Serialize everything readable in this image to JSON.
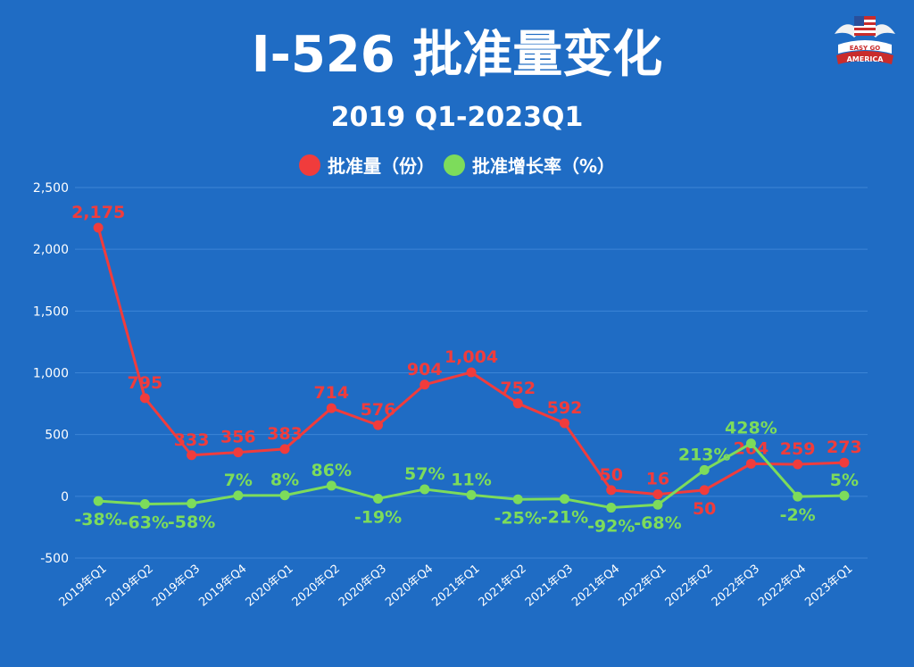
{
  "header": {
    "title": "I-526 批准量变化",
    "subtitle": "2019 Q1-2023Q1"
  },
  "logo": {
    "text_top": "EASY GO",
    "text_bottom": "AMERICA",
    "icon": "eagle-flag-logo"
  },
  "colors": {
    "background": "#1f6cc4",
    "approvals": "#f03c3c",
    "growth": "#7ddc5b",
    "text": "#ffffff"
  },
  "chart_data": {
    "type": "line",
    "title": "I-526 批准量变化",
    "subtitle": "2019 Q1-2023Q1",
    "legend_position": "top-center",
    "grid": true,
    "ylim": [
      -500,
      2500
    ],
    "yticks": [
      2500,
      2000,
      1500,
      1000,
      500,
      0,
      -500
    ],
    "ytick_labels": [
      "2,500",
      "2,000",
      "1,500",
      "1,000",
      "500",
      "0",
      "-500"
    ],
    "categories": [
      "2019年Q1",
      "2019年Q2",
      "2019年Q3",
      "2019年Q4",
      "2020年Q1",
      "2020年Q2",
      "2020年Q3",
      "2020年Q4",
      "2021年Q1",
      "2021年Q2",
      "2021年Q3",
      "2021年Q4",
      "2022年Q1",
      "2022年Q2",
      "2022年Q3",
      "2022年Q4",
      "2023年Q1"
    ],
    "series": [
      {
        "name": "批准量（份）",
        "color": "#f03c3c",
        "values": [
          2175,
          795,
          333,
          356,
          383,
          714,
          576,
          904,
          1004,
          752,
          592,
          50,
          16,
          50,
          264,
          259,
          273
        ],
        "labels": [
          "2,175",
          "795",
          "333",
          "356",
          "383",
          "714",
          "576",
          "904",
          "1,004",
          "752",
          "592",
          "50",
          "16",
          "50",
          "264",
          "259",
          "273"
        ],
        "label_positions": [
          "above",
          "above",
          "above",
          "above",
          "above",
          "above",
          "above",
          "above",
          "above",
          "above",
          "above",
          "above",
          "above",
          "below",
          "above",
          "above",
          "above"
        ]
      },
      {
        "name": "批准增长率（%）",
        "color": "#7ddc5b",
        "values": [
          -38,
          -63,
          -58,
          7,
          8,
          86,
          -19,
          57,
          11,
          -25,
          -21,
          -92,
          -68,
          213,
          428,
          -2,
          5
        ],
        "labels": [
          "-38%",
          "-63%",
          "-58%",
          "7%",
          "8%",
          "86%",
          "-19%",
          "57%",
          "11%",
          "-25%",
          "-21%",
          "-92%",
          "-68%",
          "213%",
          "428%",
          "-2%",
          "5%"
        ],
        "label_positions": [
          "below",
          "below",
          "below",
          "above",
          "above",
          "above",
          "below",
          "above",
          "above",
          "below",
          "below",
          "below",
          "below",
          "above",
          "above",
          "below",
          "above"
        ]
      }
    ]
  }
}
